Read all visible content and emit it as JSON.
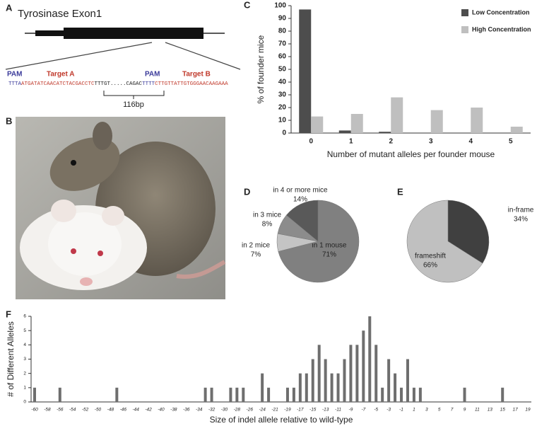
{
  "panel_labels": [
    "A",
    "B",
    "C",
    "D",
    "E",
    "F"
  ],
  "diagram": {
    "title": "Tyrosinase Exon1",
    "labels": [
      {
        "text": "PAM",
        "color": "#3a3a9a"
      },
      {
        "text": "Target A",
        "color": "#c0392b"
      },
      {
        "text": "PAM",
        "color": "#3a3a9a"
      },
      {
        "text": "Target B",
        "color": "#c0392b"
      }
    ],
    "sequence": [
      {
        "text": "TTTA",
        "color": "#3a3a9a"
      },
      {
        "text": "ATGATATCAACATCTACGACCTC",
        "color": "#c0392b"
      },
      {
        "text": "TTTGT.....CAGAC",
        "color": "#222222"
      },
      {
        "text": "TTTT",
        "color": "#3a3a9a"
      },
      {
        "text": "CTTGTTATTGTGGGAACAAGAAA",
        "color": "#c0392b"
      }
    ],
    "spacing": "116bp"
  },
  "chart_data": [
    {
      "type": "bar",
      "x_label": "Number of mutant alleles per founder mouse",
      "y_label": "% of founder mice",
      "categories": [
        "0",
        "1",
        "2",
        "3",
        "4",
        "5"
      ],
      "series": [
        {
          "name": "Low Concentration",
          "color": "#4d4d4d",
          "values": [
            97,
            2,
            1,
            0,
            0,
            0
          ]
        },
        {
          "name": "High Concentration",
          "color": "#bfbfbf",
          "values": [
            13,
            15,
            28,
            18,
            20,
            5
          ]
        }
      ],
      "ylim": [
        0,
        100
      ],
      "yticks": [
        0,
        10,
        20,
        30,
        40,
        50,
        60,
        70,
        80,
        90,
        100
      ],
      "legend": "upper right"
    },
    {
      "type": "pie",
      "categories": [
        "in 1 mouse",
        "in 2 mice",
        "in 3 mice",
        "in 4 or more mice"
      ],
      "values": [
        71,
        7,
        8,
        14
      ],
      "value_labels": [
        "71%",
        "7%",
        "8%",
        "14%"
      ],
      "colors": [
        "#808080",
        "#c4c4c4",
        "#8c8c8c",
        "#595959"
      ]
    },
    {
      "type": "pie",
      "categories": [
        "in-frame",
        "frameshift"
      ],
      "values": [
        34,
        66
      ],
      "value_labels": [
        "34%",
        "66%"
      ],
      "colors": [
        "#404040",
        "#c0c0c0"
      ]
    },
    {
      "type": "bar",
      "x_label": "Size of indel allele relative to wild-type",
      "y_label": "# of Different Alleles",
      "categories": [
        "-60",
        null,
        "-58",
        null,
        "-56",
        null,
        "-54",
        null,
        "-52",
        null,
        "-50",
        null,
        "-48",
        null,
        "-46",
        null,
        "-44",
        null,
        "-42",
        null,
        "-40",
        null,
        "-38",
        null,
        "-36",
        null,
        "-34",
        null,
        "-32",
        null,
        "-30",
        null,
        "-28",
        null,
        "-26",
        null,
        "-24",
        null,
        "-21",
        null,
        "-19",
        null,
        "-17",
        null,
        "-15",
        null,
        "-13",
        null,
        "-11",
        null,
        "-9",
        null,
        "-7",
        null,
        "-5",
        null,
        "-3",
        null,
        "-1",
        null,
        "1",
        null,
        "3",
        null,
        "5",
        null,
        "7",
        null,
        "9",
        null,
        "11",
        null,
        "13",
        null,
        "15",
        null,
        "17",
        null,
        "19"
      ],
      "values": [
        1,
        0,
        0,
        0,
        1,
        0,
        0,
        0,
        0,
        0,
        0,
        0,
        0,
        1,
        0,
        0,
        0,
        0,
        0,
        0,
        0,
        0,
        0,
        0,
        0,
        0,
        0,
        1,
        1,
        0,
        0,
        1,
        1,
        1,
        0,
        0,
        2,
        1,
        0,
        0,
        1,
        1,
        2,
        2,
        3,
        4,
        3,
        2,
        2,
        3,
        4,
        4,
        5,
        6,
        4,
        1,
        3,
        2,
        1,
        3,
        1,
        1,
        0,
        0,
        0,
        0,
        0,
        0,
        1,
        0,
        0,
        0,
        0,
        0,
        1,
        0,
        0,
        0,
        0
      ],
      "color": "#6e6e6e",
      "ylim": [
        0,
        6
      ],
      "yticks": [
        0,
        1,
        2,
        3,
        4,
        5,
        6
      ]
    }
  ]
}
